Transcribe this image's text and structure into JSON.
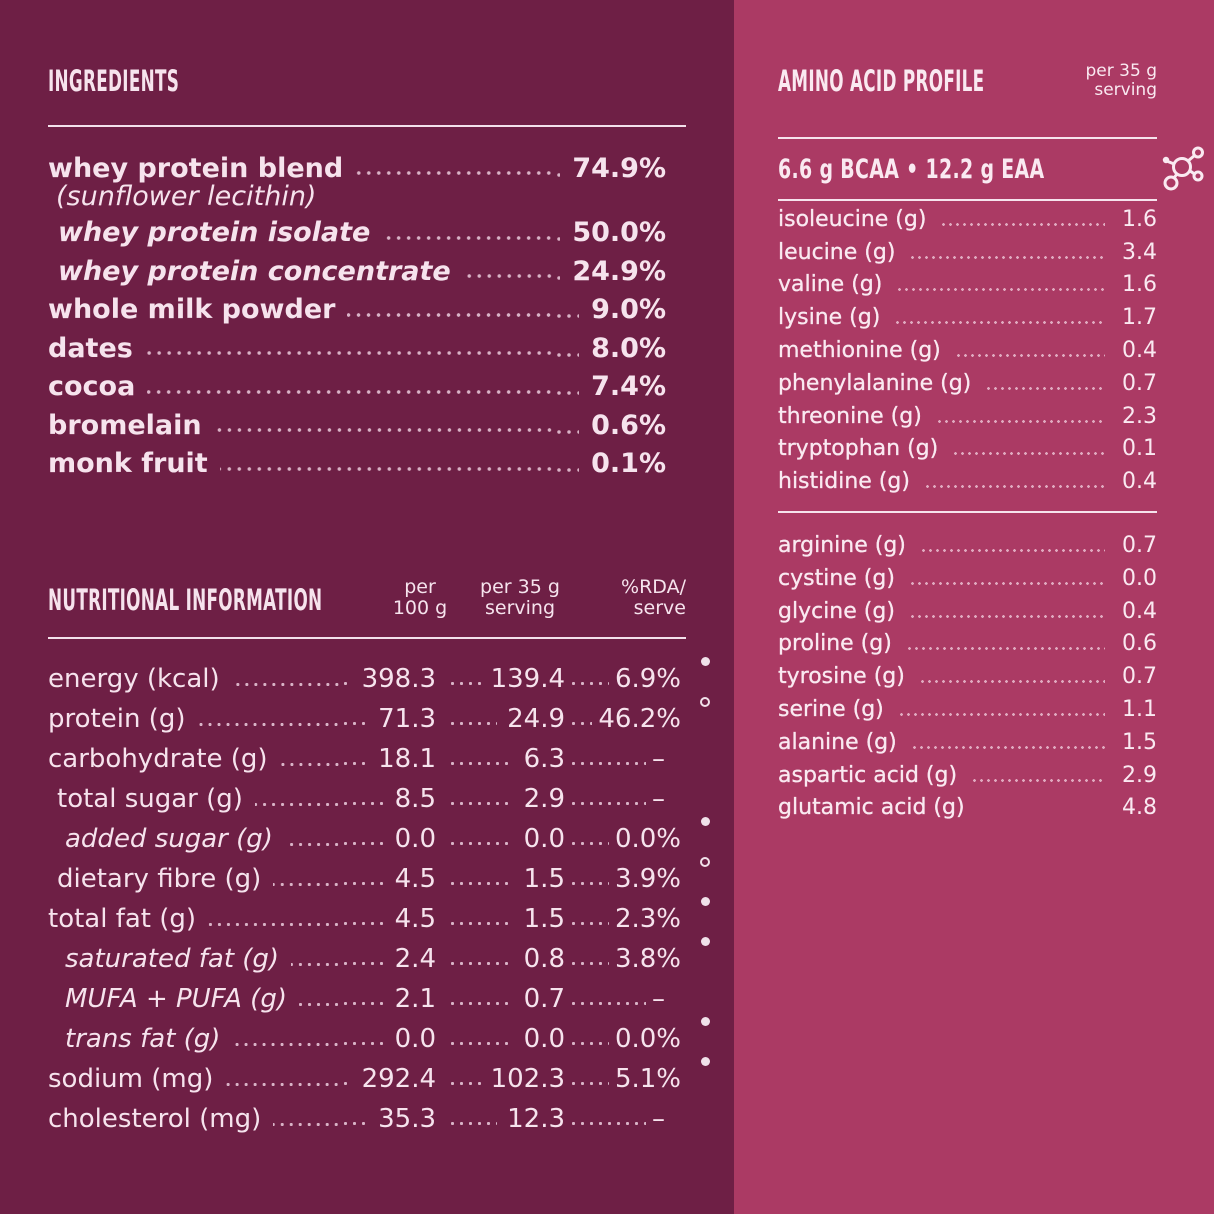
{
  "colors": {
    "left_bg": "#6e1f45",
    "right_bg": "#ab3a64"
  },
  "ingredients": {
    "title": "INGREDIENTS",
    "items": [
      {
        "label": "whey protein blend",
        "note": "(sunflower lecithin)",
        "value": "74.9%",
        "style": "main"
      },
      {
        "label": "whey protein isolate",
        "value": "50.0%",
        "style": "sub"
      },
      {
        "label": "whey protein concentrate",
        "value": "24.9%",
        "style": "sub"
      },
      {
        "label": "whole milk powder",
        "value": "9.0%",
        "style": "main"
      },
      {
        "label": "dates",
        "value": "8.0%",
        "style": "main"
      },
      {
        "label": "cocoa",
        "value": "7.4%",
        "style": "main"
      },
      {
        "label": "bromelain",
        "value": "0.6%",
        "style": "main"
      },
      {
        "label": "monk fruit",
        "value": "0.1%",
        "style": "main"
      }
    ]
  },
  "nutrition": {
    "title": "NUTRITIONAL INFORMATION",
    "columns": [
      "per\n100 g",
      "per 35 g\nserving",
      "%RDA/\nserve"
    ],
    "rows": [
      {
        "label": "energy (kcal)",
        "per100": "398.3",
        "per35": "139.4",
        "rda": "6.9%",
        "indent": 0,
        "marker": "filled"
      },
      {
        "label": "protein (g)",
        "per100": "71.3",
        "per35": "24.9",
        "rda": "46.2%",
        "indent": 0,
        "marker": "hollow"
      },
      {
        "label": "carbohydrate (g)",
        "per100": "18.1",
        "per35": "6.3",
        "rda": "–",
        "indent": 0
      },
      {
        "label": "total sugar (g)",
        "per100": "8.5",
        "per35": "2.9",
        "rda": "–",
        "indent": 1
      },
      {
        "label": "added sugar (g)",
        "per100": "0.0",
        "per35": "0.0",
        "rda": "0.0%",
        "indent": 2,
        "italic": true,
        "marker": "filled"
      },
      {
        "label": "dietary fibre (g)",
        "per100": "4.5",
        "per35": "1.5",
        "rda": "3.9%",
        "indent": 1,
        "marker": "hollow"
      },
      {
        "label": "total fat (g)",
        "per100": "4.5",
        "per35": "1.5",
        "rda": "2.3%",
        "indent": 0,
        "marker": "filled"
      },
      {
        "label": "saturated fat (g)",
        "per100": "2.4",
        "per35": "0.8",
        "rda": "3.8%",
        "indent": 2,
        "italic": true,
        "marker": "filled"
      },
      {
        "label": "MUFA + PUFA (g)",
        "per100": "2.1",
        "per35": "0.7",
        "rda": "–",
        "indent": 2,
        "italic": true
      },
      {
        "label": "trans fat (g)",
        "per100": "0.0",
        "per35": "0.0",
        "rda": "0.0%",
        "indent": 2,
        "italic": true,
        "marker": "filled"
      },
      {
        "label": "sodium (mg)",
        "per100": "292.4",
        "per35": "102.3",
        "rda": "5.1%",
        "indent": 0,
        "marker": "filled"
      },
      {
        "label": "cholesterol (mg)",
        "per100": "35.3",
        "per35": "12.3",
        "rda": "–",
        "indent": 0
      }
    ]
  },
  "amino": {
    "title": "AMINO ACID PROFILE",
    "serving_note": "per 35 g\nserving",
    "summary": "6.6 g BCAA  •  12.2 g EAA",
    "groups": [
      [
        {
          "label": "isoleucine (g)",
          "value": "1.6"
        },
        {
          "label": "leucine (g)",
          "value": "3.4"
        },
        {
          "label": "valine (g)",
          "value": "1.6"
        },
        {
          "label": "lysine (g)",
          "value": "1.7"
        },
        {
          "label": "methionine (g)",
          "value": "0.4"
        },
        {
          "label": "phenylalanine (g)",
          "value": "0.7"
        },
        {
          "label": "threonine (g)",
          "value": "2.3"
        },
        {
          "label": "tryptophan (g)",
          "value": "0.1"
        },
        {
          "label": "histidine (g)",
          "value": "0.4"
        }
      ],
      [
        {
          "label": "arginine (g)",
          "value": "0.7"
        },
        {
          "label": "cystine (g)",
          "value": "0.0"
        },
        {
          "label": "glycine (g)",
          "value": "0.4"
        },
        {
          "label": "proline (g)",
          "value": "0.6"
        },
        {
          "label": "tyrosine (g)",
          "value": "0.7"
        },
        {
          "label": "serine (g)",
          "value": "1.1"
        },
        {
          "label": "alanine (g)",
          "value": "1.5"
        },
        {
          "label": "aspartic acid (g)",
          "value": "2.9"
        },
        {
          "label": "glutamic acid (g)",
          "value": "4.8",
          "no_dots": true
        }
      ]
    ]
  }
}
